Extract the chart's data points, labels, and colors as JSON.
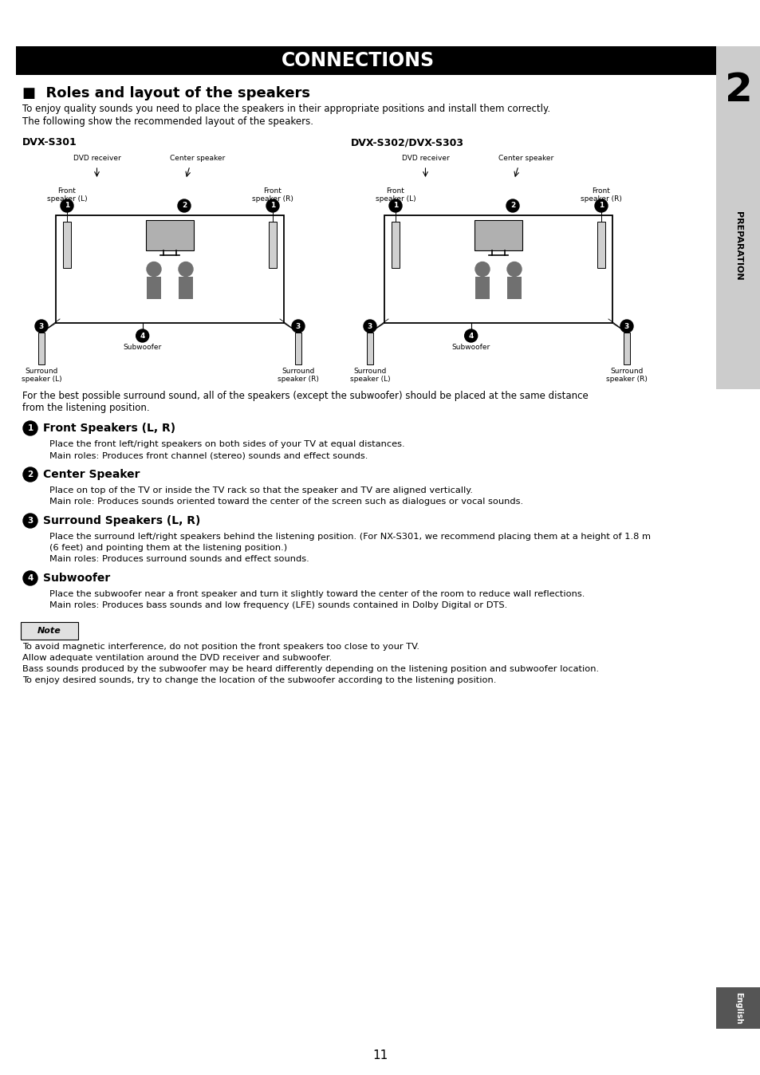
{
  "title": "CONNECTIONS",
  "section_title": "■  Roles and layout of the speakers",
  "intro_line1": "To enjoy quality sounds you need to place the speakers in their appropriate positions and install them correctly.",
  "intro_line2": "The following show the recommended layout of the speakers.",
  "dvx_s301_label": "DVX-S301",
  "dvx_s302_label": "DVX-S302/DVX-S303",
  "dvd_receiver_label": "DVD receiver",
  "center_speaker_label": "Center speaker",
  "front_speaker_l": "Front\nspeaker (L)",
  "front_speaker_r": "Front\nspeaker (R)",
  "surround_l": "Surround\nspeaker (L)",
  "surround_r": "Surround\nspeaker (R)",
  "subwoofer": "Subwoofer",
  "best_sound_line1": "For the best possible surround sound, all of the speakers (except the subwoofer) should be placed at the same distance",
  "best_sound_line2": "from the listening position.",
  "section1_title": "Front Speakers (L, R)",
  "section1_body1": "Place the front left/right speakers on both sides of your TV at equal distances.",
  "section1_body2": "Main roles: Produces front channel (stereo) sounds and effect sounds.",
  "section2_title": "Center Speaker",
  "section2_body1": "Place on top of the TV or inside the TV rack so that the speaker and TV are aligned vertically.",
  "section2_body2": "Main role: Produces sounds oriented toward the center of the screen such as dialogues or vocal sounds.",
  "section3_title": "Surround Speakers (L, R)",
  "section3_body1": "Place the surround left/right speakers behind the listening position. (For NX-S301, we recommend placing them at a height of 1.8 m",
  "section3_body2": "(6 feet) and pointing them at the listening position.)",
  "section3_body3": "Main roles: Produces surround sounds and effect sounds.",
  "section4_title": "Subwoofer",
  "section4_body1": "Place the subwoofer near a front speaker and turn it slightly toward the center of the room to reduce wall reflections.",
  "section4_body2": "Main roles: Produces bass sounds and low frequency (LFE) sounds contained in Dolby Digital or DTS.",
  "note_title": "Note",
  "note_body1": "To avoid magnetic interference, do not position the front speakers too close to your TV.",
  "note_body2": "Allow adequate ventilation around the DVD receiver and subwoofer.",
  "note_body3": "Bass sounds produced by the subwoofer may be heard differently depending on the listening position and subwoofer location.",
  "note_body4": "To enjoy desired sounds, try to change the location of the subwoofer according to the listening position.",
  "page_number": "11",
  "preparation_label": "PREPARATION",
  "english_label": "English",
  "chapter_number": "2",
  "title_bg": "#000000",
  "title_fg": "#ffffff",
  "body_bg": "#ffffff",
  "sidebar_bg": "#cccccc",
  "note_box_bg": "#e0e0e0"
}
